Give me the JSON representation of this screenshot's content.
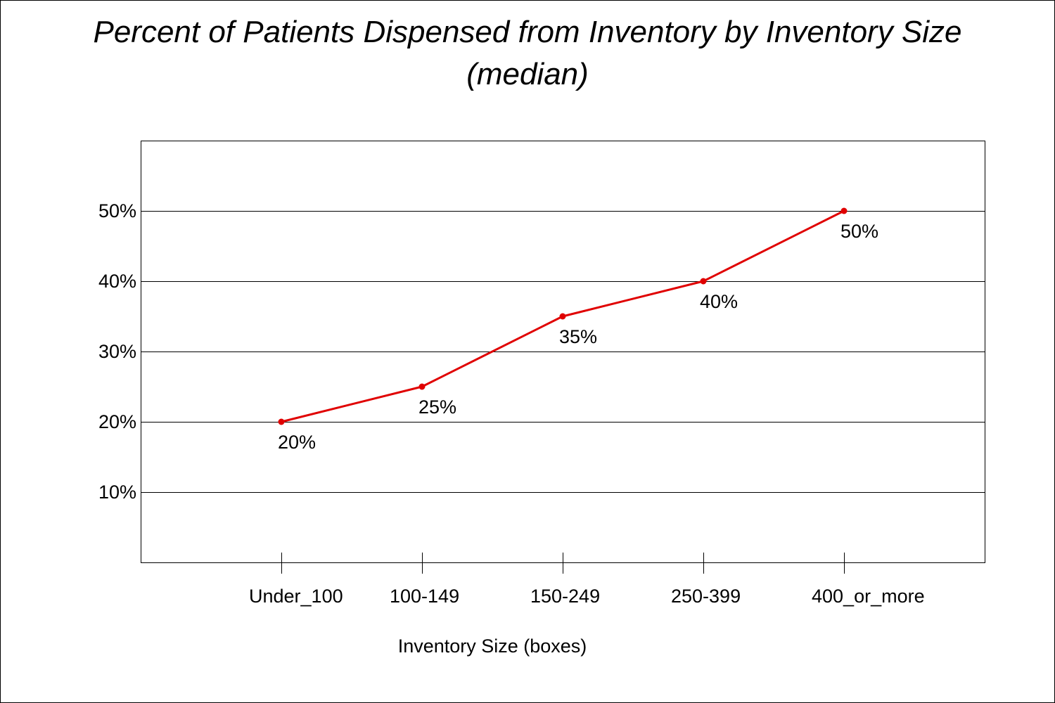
{
  "chart_data": {
    "type": "line",
    "title_line1": "Percent of Patients Dispensed from Inventory by Inventory Size",
    "title_line2": "(median)",
    "xlabel": "Inventory Size (boxes)",
    "ylabel": "",
    "categories": [
      "Under_100",
      "100-149",
      "150-249",
      "250-399",
      "400_or_more"
    ],
    "series": [
      {
        "values": [
          20,
          25,
          35,
          40,
          50
        ],
        "labels": [
          "20%",
          "25%",
          "35%",
          "40%",
          "50%"
        ],
        "color": "#e00000"
      }
    ],
    "ylim": [
      0,
      60
    ],
    "yticks": [
      10,
      20,
      30,
      40,
      50
    ],
    "ytick_labels": [
      "10%",
      "20%",
      "30%",
      "40%",
      "50%"
    ],
    "grid": true,
    "legend": "none"
  }
}
